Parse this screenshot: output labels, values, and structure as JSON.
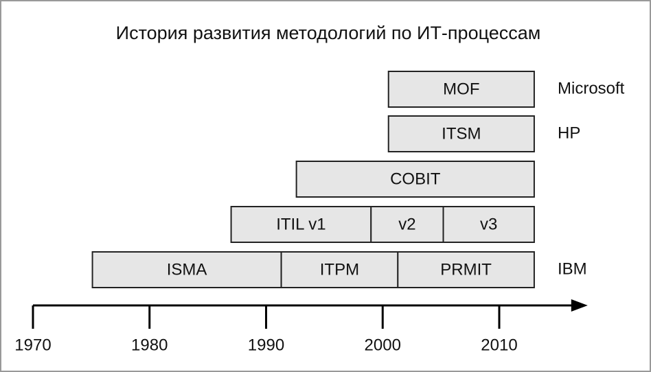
{
  "chart_data": {
    "type": "timeline",
    "title": "История развития методологий по ИТ-процессам",
    "xlim": [
      1970,
      2017
    ],
    "xticks": [
      1970,
      1980,
      1990,
      2000,
      2010
    ],
    "bar_color": "#e6e6e6",
    "rows": [
      {
        "label": "Microsoft",
        "bars": [
          {
            "name": "MOF",
            "start": 2000.5,
            "end": 2013
          }
        ]
      },
      {
        "label": "HP",
        "bars": [
          {
            "name": "ITSM",
            "start": 2000.5,
            "end": 2013
          }
        ]
      },
      {
        "bars": [
          {
            "name": "COBIT",
            "start": 1992.6,
            "end": 2013
          }
        ]
      },
      {
        "bars": [
          {
            "name": "ITIL v1",
            "start": 1987,
            "end": 1999
          },
          {
            "name": "v2",
            "start": 1999,
            "end": 2005.2
          },
          {
            "name": "v3",
            "start": 2005.2,
            "end": 2013
          }
        ]
      },
      {
        "label": "IBM",
        "bars": [
          {
            "name": "ISMA",
            "start": 1975.1,
            "end": 1991.3
          },
          {
            "name": "ITPM",
            "start": 1991.3,
            "end": 2001.3
          },
          {
            "name": "PRMIT",
            "start": 2001.3,
            "end": 2013
          }
        ]
      }
    ]
  }
}
